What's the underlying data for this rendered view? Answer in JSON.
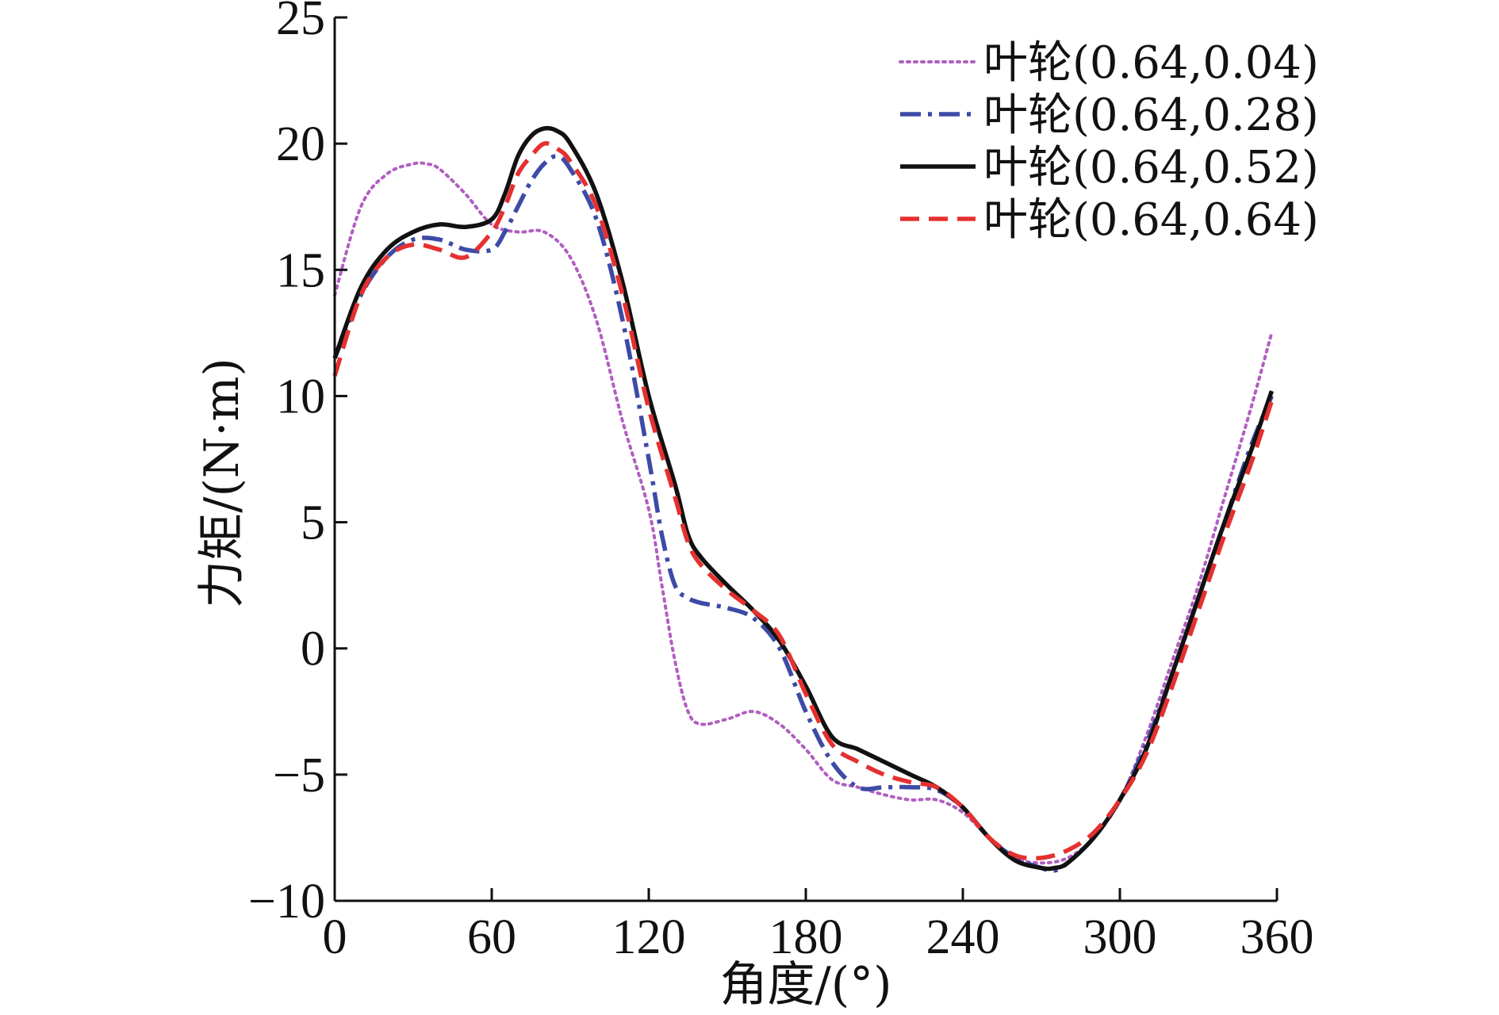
{
  "chart_data": {
    "type": "line",
    "title": "",
    "xlabel": "角度/(°)",
    "ylabel": "力矩/(N·m)",
    "xlim": [
      0,
      360
    ],
    "ylim": [
      -10,
      25
    ],
    "xticks": [
      0,
      60,
      120,
      180,
      240,
      300,
      360
    ],
    "yticks": [
      -10,
      -5,
      0,
      5,
      10,
      15,
      20,
      25
    ],
    "xtick_labels": [
      "0",
      "60",
      "120",
      "180",
      "240",
      "300",
      "360"
    ],
    "ytick_labels": [
      "−10",
      "−5",
      "0",
      "5",
      "10",
      "15",
      "20",
      "25"
    ],
    "grid": false,
    "legend_position": "top-right",
    "series": [
      {
        "name": "叶轮(0.64,0.04)",
        "color": "#b15fc0",
        "style": "dotted",
        "x": [
          0,
          10,
          20,
          30,
          35,
          40,
          50,
          60,
          70,
          80,
          90,
          100,
          110,
          120,
          125,
          130,
          135,
          140,
          150,
          160,
          170,
          180,
          190,
          200,
          210,
          220,
          230,
          240,
          250,
          260,
          270,
          280,
          290,
          300,
          310,
          320,
          330,
          340,
          350,
          358
        ],
        "values": [
          14.0,
          17.5,
          18.8,
          19.2,
          19.2,
          19.0,
          18.0,
          16.8,
          16.5,
          16.5,
          15.5,
          13.0,
          9.0,
          5.5,
          2.5,
          -0.5,
          -2.5,
          -3.0,
          -2.8,
          -2.5,
          -3.0,
          -4.0,
          -5.2,
          -5.5,
          -5.8,
          -6.0,
          -6.0,
          -6.5,
          -7.5,
          -8.3,
          -8.5,
          -8.3,
          -7.5,
          -6.0,
          -3.5,
          -0.5,
          2.5,
          6.0,
          9.5,
          12.5
        ]
      },
      {
        "name": "叶轮(0.64,0.28)",
        "color": "#3d4aa6",
        "style": "dash-dot",
        "x": [
          0,
          10,
          20,
          30,
          40,
          50,
          60,
          65,
          70,
          75,
          80,
          85,
          90,
          100,
          110,
          120,
          125,
          130,
          135,
          140,
          150,
          160,
          170,
          180,
          190,
          200,
          210,
          220,
          230,
          240,
          250,
          260,
          270,
          275,
          280,
          290,
          300,
          310,
          320,
          330,
          340,
          350,
          358
        ],
        "values": [
          11.5,
          14.0,
          15.5,
          16.2,
          16.2,
          15.8,
          15.8,
          16.5,
          17.5,
          18.5,
          19.2,
          19.5,
          19.0,
          17.0,
          13.0,
          7.5,
          4.5,
          2.5,
          2.0,
          1.8,
          1.6,
          1.2,
          0.0,
          -2.5,
          -4.5,
          -5.5,
          -5.5,
          -5.5,
          -5.6,
          -6.3,
          -7.5,
          -8.3,
          -8.7,
          -8.8,
          -8.5,
          -7.5,
          -6.0,
          -3.8,
          -1.0,
          2.0,
          5.0,
          8.0,
          10.0
        ]
      },
      {
        "name": "叶轮(0.64,0.52)",
        "color": "#111111",
        "style": "solid",
        "x": [
          0,
          10,
          20,
          30,
          40,
          50,
          60,
          65,
          70,
          75,
          80,
          85,
          90,
          100,
          110,
          120,
          130,
          135,
          140,
          150,
          160,
          170,
          180,
          190,
          200,
          210,
          220,
          230,
          240,
          250,
          260,
          270,
          275,
          280,
          290,
          300,
          310,
          320,
          330,
          340,
          350,
          358
        ],
        "values": [
          11.5,
          14.3,
          15.8,
          16.5,
          16.8,
          16.7,
          17.0,
          18.0,
          19.5,
          20.3,
          20.6,
          20.5,
          20.0,
          18.0,
          14.5,
          10.0,
          6.5,
          4.5,
          3.6,
          2.5,
          1.5,
          0.3,
          -1.5,
          -3.5,
          -4.0,
          -4.5,
          -5.0,
          -5.5,
          -6.3,
          -7.5,
          -8.4,
          -8.7,
          -8.7,
          -8.5,
          -7.5,
          -6.0,
          -4.0,
          -1.0,
          2.0,
          5.0,
          7.8,
          10.2
        ]
      },
      {
        "name": "叶轮(0.64,0.64)",
        "color": "#e53030",
        "style": "dashed",
        "x": [
          0,
          10,
          20,
          30,
          40,
          50,
          60,
          65,
          70,
          75,
          80,
          85,
          90,
          100,
          110,
          120,
          130,
          135,
          140,
          150,
          160,
          170,
          180,
          190,
          200,
          210,
          220,
          230,
          240,
          250,
          260,
          270,
          280,
          290,
          300,
          310,
          320,
          330,
          340,
          350,
          358
        ],
        "values": [
          10.8,
          14.0,
          15.5,
          16.0,
          15.8,
          15.5,
          16.5,
          17.5,
          18.8,
          19.5,
          20.0,
          19.8,
          19.3,
          17.5,
          14.0,
          9.5,
          6.0,
          4.2,
          3.3,
          2.3,
          1.5,
          0.5,
          -1.8,
          -3.8,
          -4.5,
          -5.0,
          -5.3,
          -5.5,
          -6.3,
          -7.5,
          -8.2,
          -8.3,
          -8.0,
          -7.3,
          -6.0,
          -4.2,
          -1.5,
          1.5,
          4.5,
          7.3,
          9.8
        ]
      }
    ]
  }
}
